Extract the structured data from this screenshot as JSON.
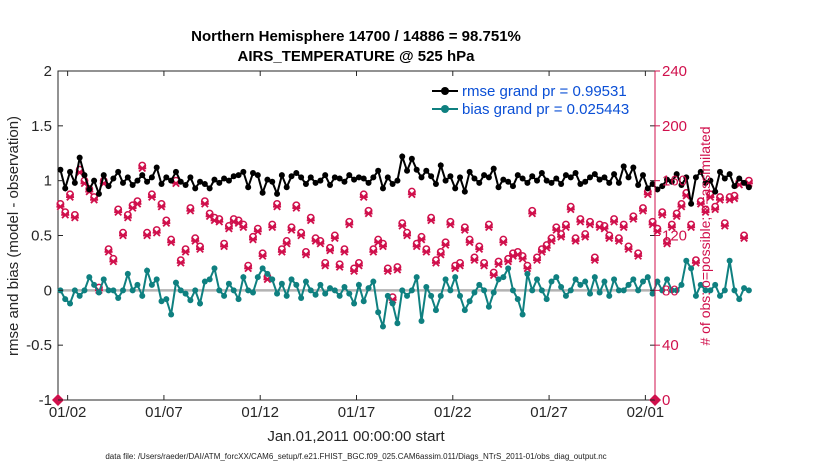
{
  "chart_data": {
    "type": "line",
    "title_line1": "Northern Hemisphere 14700 / 14886 = 98.751%",
    "title_line2": "AIRS_TEMPERATURE @ 525 hPa",
    "ylabel_left": "rmse and bias (model - observation)",
    "ylabel_right": "# of obs: o=possible; ×=assimilated",
    "xlabel": "Jan.01,2011 00:00:00 start",
    "footnote": "data file: /Users/raeder/DAI/ATM_forcXX/CAM6_setup/f.e21.FHIST_BGC.f09_025.CAM6assim.011/Diags_NTrS_2011-01/obs_diag_output.nc",
    "ylim_left": [
      -1,
      2
    ],
    "ylim_right": [
      0,
      240
    ],
    "yticks_left": [
      "-1",
      "-0.5",
      "0",
      "0.5",
      "1",
      "1.5",
      "2"
    ],
    "yticks_right": [
      "0",
      "40",
      "80",
      "120",
      "160",
      "200",
      "240"
    ],
    "x_range_days": [
      0.5,
      31.5
    ],
    "xticks": [
      {
        "day": 1,
        "label": "01/02"
      },
      {
        "day": 6,
        "label": "01/07"
      },
      {
        "day": 11,
        "label": "01/12"
      },
      {
        "day": 16,
        "label": "01/17"
      },
      {
        "day": 21,
        "label": "01/22"
      },
      {
        "day": 26,
        "label": "01/27"
      },
      {
        "day": 31,
        "label": "02/01"
      }
    ],
    "samples_per_day": 4,
    "legend": [
      {
        "name": "rmse grand pr = 0.99531",
        "color": "#000000"
      },
      {
        "name": "bias grand pr = 0.025443",
        "color": "#0f8080"
      }
    ],
    "colors": {
      "rmse": "#000000",
      "bias": "#0f8080",
      "obs": "#d0104c",
      "zero_line": "#b3b3b3",
      "legend_text": "#0a4fd6"
    },
    "series": [
      {
        "name": "rmse",
        "axis": "left",
        "values": [
          1.1,
          0.93,
          1.08,
          0.98,
          1.21,
          1.05,
          0.92,
          1.0,
          0.88,
          1.05,
          0.95,
          1.02,
          1.08,
          0.98,
          1.03,
          0.96,
          1.0,
          1.05,
          0.99,
          1.03,
          1.12,
          0.97,
          1.03,
          1.0,
          1.08,
          0.99,
          0.96,
          1.03,
          0.93,
          0.99,
          0.97,
          0.93,
          1.01,
          0.98,
          1.02,
          1.0,
          1.04,
          1.05,
          1.08,
          0.94,
          1.07,
          1.05,
          0.89,
          1.01,
          0.99,
          0.88,
          1.05,
          0.94,
          1.04,
          1.07,
          1.03,
          0.97,
          1.03,
          0.98,
          1.0,
          1.05,
          0.96,
          1.03,
          1.02,
          0.99,
          1.05,
          1.01,
          1.03,
          1.02,
          0.98,
          1.03,
          1.09,
          0.93,
          1.03,
          0.97,
          1.0,
          1.22,
          1.09,
          1.2,
          1.1,
          1.03,
          1.09,
          1.04,
          0.97,
          1.14,
          1.0,
          1.04,
          0.93,
          1.03,
          0.9,
          1.08,
          1.02,
          0.98,
          1.05,
          1.03,
          1.11,
          0.94,
          1.01,
          0.99,
          0.95,
          1.05,
          1.02,
          0.98,
          1.04,
          1.0,
          1.07,
          1.0,
          0.98,
          1.02,
          0.97,
          1.05,
          1.03,
          1.07,
          0.97,
          0.99,
          1.03,
          1.06,
          1.01,
          1.03,
          0.98,
          1.06,
          0.98,
          1.13,
          1.03,
          1.12,
          0.96,
          1.05,
          0.93,
          0.97,
          0.92,
          0.95,
          1.01,
          0.99,
          1.06,
          0.96,
          1.03,
          0.79,
          1.03,
          1.08,
          0.98,
          1.0,
          0.9,
          1.08,
          1.02,
          1.06,
          0.95,
          1.02,
          0.98,
          0.94
        ]
      },
      {
        "name": "bias",
        "axis": "left",
        "values": [
          0.0,
          -0.08,
          -0.12,
          0.0,
          -0.05,
          0.0,
          0.12,
          0.05,
          -0.02,
          0.1,
          0.0,
          0.0,
          -0.07,
          0.0,
          0.15,
          0.0,
          0.05,
          -0.05,
          0.18,
          0.05,
          0.1,
          -0.1,
          -0.08,
          -0.22,
          0.07,
          0.0,
          -0.03,
          -0.09,
          0.0,
          -0.12,
          0.08,
          0.1,
          0.2,
          0.0,
          -0.05,
          0.06,
          0.0,
          -0.08,
          0.12,
          0.0,
          -0.02,
          0.12,
          0.2,
          0.15,
          0.1,
          -0.03,
          0.06,
          -0.05,
          0.1,
          0.05,
          -0.07,
          0.08,
          0.0,
          -0.04,
          0.05,
          -0.03,
          0.02,
          0.0,
          -0.05,
          0.03,
          -0.03,
          -0.12,
          0.05,
          -0.1,
          0.02,
          0.08,
          -0.2,
          -0.33,
          -0.05,
          -0.12,
          -0.3,
          0.0,
          -0.05,
          0.0,
          0.12,
          -0.28,
          0.03,
          -0.05,
          -0.18,
          -0.05,
          0.1,
          0.0,
          0.12,
          -0.05,
          -0.18,
          -0.1,
          -0.02,
          0.05,
          0.0,
          -0.15,
          -0.02,
          0.1,
          0.12,
          0.2,
          0.0,
          -0.08,
          -0.22,
          0.15,
          0.0,
          0.1,
          0.0,
          -0.08,
          0.08,
          0.12,
          0.03,
          -0.05,
          0.0,
          0.1,
          0.05,
          0.08,
          -0.03,
          0.12,
          -0.02,
          0.08,
          -0.05,
          0.1,
          0.0,
          0.0,
          0.05,
          0.1,
          0.0,
          0.08,
          0.12,
          -0.03,
          0.08,
          0.0,
          0.1,
          0.0,
          0.0,
          0.05,
          0.27,
          0.2,
          -0.05,
          0.05,
          0.0,
          0.0,
          0.05,
          -0.05,
          0.0,
          0.27,
          0.0,
          -0.08,
          0.02,
          0.0
        ]
      },
      {
        "name": "obs_possible",
        "axis": "right",
        "values": [
          143,
          137,
          150,
          135,
          168,
          160,
          154,
          148,
          82,
          160,
          110,
          103,
          139,
          122,
          135,
          142,
          145,
          171,
          122,
          150,
          124,
          143,
          131,
          117,
          160,
          102,
          110,
          140,
          118,
          112,
          145,
          136,
          133,
          132,
          114,
          127,
          132,
          131,
          128,
          98,
          119,
          125,
          107,
          90,
          128,
          143,
          110,
          116,
          126,
          142,
          122,
          108,
          133,
          118,
          116,
          100,
          111,
          120,
          99,
          110,
          130,
          96,
          100,
          150,
          138,
          110,
          117,
          114,
          96,
          75,
          97,
          129,
          122,
          152,
          114,
          119,
          110,
          133,
          102,
          108,
          115,
          130,
          98,
          100,
          126,
          117,
          104,
          112,
          100,
          128,
          93,
          101,
          117,
          103,
          107,
          108,
          105,
          98,
          138,
          104,
          110,
          113,
          118,
          126,
          121,
          128,
          141,
          118,
          132,
          121,
          130,
          104,
          128,
          127,
          120,
          132,
          118,
          128,
          112,
          134,
          107,
          140,
          152,
          130,
          125,
          137,
          116,
          128,
          136,
          143,
          151,
          128,
          102,
          145,
          139,
          150,
          141,
          148,
          129,
          148,
          149,
          159,
          120,
          160
        ]
      },
      {
        "name": "obs_assimilated",
        "axis": "right",
        "values": [
          141,
          135,
          148,
          133,
          166,
          158,
          152,
          146,
          80,
          158,
          108,
          101,
          137,
          120,
          133,
          140,
          143,
          169,
          120,
          148,
          122,
          141,
          129,
          115,
          158,
          100,
          108,
          138,
          116,
          110,
          143,
          134,
          131,
          130,
          112,
          125,
          130,
          129,
          126,
          96,
          117,
          123,
          105,
          88,
          126,
          141,
          108,
          114,
          124,
          140,
          120,
          106,
          131,
          116,
          114,
          98,
          109,
          118,
          97,
          108,
          128,
          94,
          98,
          148,
          136,
          108,
          115,
          112,
          94,
          73,
          95,
          127,
          120,
          150,
          112,
          117,
          108,
          131,
          100,
          106,
          113,
          128,
          96,
          98,
          124,
          115,
          102,
          110,
          98,
          126,
          91,
          99,
          115,
          101,
          105,
          106,
          103,
          96,
          136,
          102,
          108,
          111,
          116,
          124,
          119,
          126,
          139,
          116,
          130,
          119,
          128,
          102,
          126,
          125,
          118,
          130,
          116,
          126,
          110,
          132,
          105,
          138,
          150,
          128,
          123,
          135,
          114,
          126,
          134,
          141,
          149,
          126,
          100,
          143,
          137,
          148,
          139,
          146,
          127,
          146,
          147,
          157,
          118,
          158
        ]
      }
    ]
  }
}
